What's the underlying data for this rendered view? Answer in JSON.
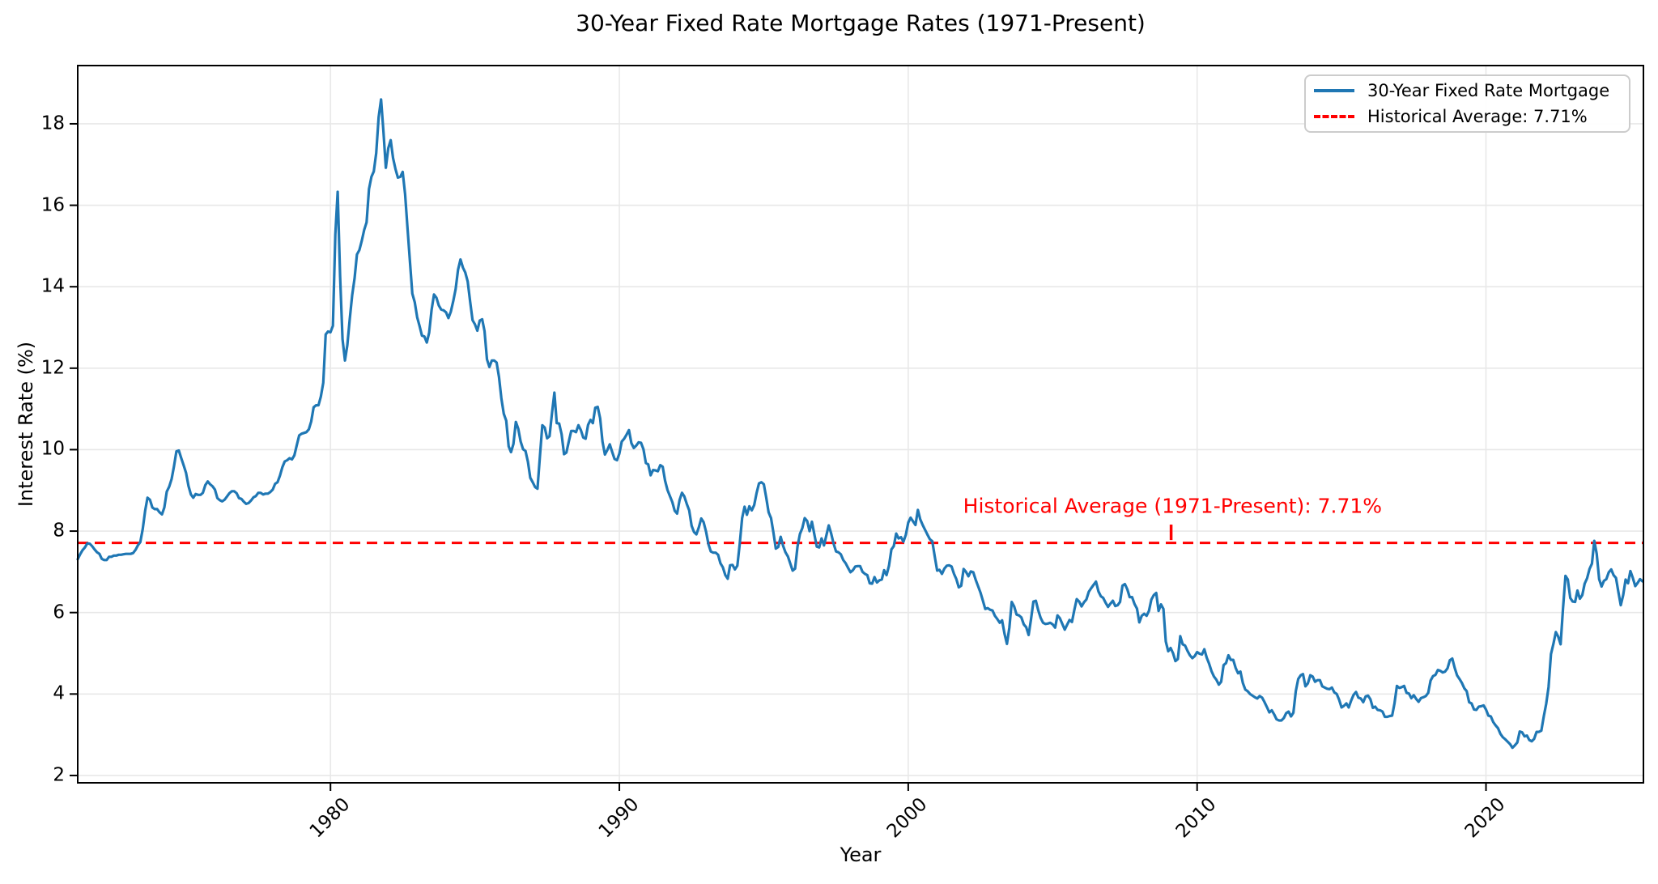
{
  "figure": {
    "background": "#ffffff"
  },
  "chart_data": {
    "type": "line",
    "title": "30-Year Fixed Rate Mortgage Rates (1971-Present)",
    "xlabel": "Year",
    "ylabel": "Interest Rate (%)",
    "xlim": [
      1971.25,
      2025.45
    ],
    "ylim": [
      1.82,
      19.43
    ],
    "xticks": [
      1980,
      1990,
      2000,
      2010,
      2020
    ],
    "yticks": [
      2,
      4,
      6,
      8,
      10,
      12,
      14,
      16,
      18
    ],
    "grid": true,
    "legend_position": "upper right",
    "colors": {
      "line": "#1f77b4",
      "average": "#ff0000",
      "grid": "#e8e8e8",
      "spine": "#000000"
    },
    "annotation": {
      "text": "Historical Average (1971-Present): 7.71%",
      "color": "#ff0000",
      "text_x": 2009.15,
      "text_y": 8.62,
      "pointer_x": 2009.1,
      "pointer_top": 8.16,
      "pointer_bottom": 7.78
    },
    "average_line": {
      "label": "Historical Average: 7.71%",
      "value": 7.71,
      "style": "dashed"
    },
    "series": [
      {
        "name": "30-Year Fixed Rate Mortgage",
        "style": "solid",
        "frequency": "monthly",
        "start_year": 1971,
        "start_month": 4,
        "values": [
          7.31,
          7.43,
          7.53,
          7.6,
          7.7,
          7.69,
          7.63,
          7.55,
          7.48,
          7.44,
          7.32,
          7.29,
          7.29,
          7.37,
          7.37,
          7.4,
          7.4,
          7.42,
          7.42,
          7.43,
          7.44,
          7.44,
          7.44,
          7.46,
          7.54,
          7.65,
          7.73,
          8.05,
          8.5,
          8.82,
          8.77,
          8.58,
          8.54,
          8.54,
          8.46,
          8.41,
          8.58,
          8.97,
          9.09,
          9.28,
          9.59,
          9.96,
          9.98,
          9.79,
          9.62,
          9.43,
          9.11,
          8.9,
          8.82,
          8.91,
          8.89,
          8.89,
          8.94,
          9.13,
          9.22,
          9.15,
          9.1,
          9.02,
          8.81,
          8.76,
          8.73,
          8.77,
          8.85,
          8.93,
          8.98,
          8.98,
          8.93,
          8.81,
          8.79,
          8.72,
          8.67,
          8.69,
          8.75,
          8.83,
          8.86,
          8.94,
          8.94,
          8.9,
          8.92,
          8.92,
          8.96,
          9.02,
          9.16,
          9.2,
          9.36,
          9.57,
          9.71,
          9.74,
          9.79,
          9.76,
          9.86,
          10.11,
          10.35,
          10.39,
          10.41,
          10.43,
          10.5,
          10.69,
          11.04,
          11.09,
          11.09,
          11.3,
          11.64,
          12.83,
          12.9,
          12.88,
          13.04,
          15.28,
          16.33,
          14.26,
          12.71,
          12.19,
          12.56,
          13.2,
          13.79,
          14.21,
          14.79,
          14.9,
          15.13,
          15.4,
          15.58,
          16.4,
          16.7,
          16.83,
          17.28,
          18.16,
          18.6,
          17.82,
          16.92,
          17.4,
          17.6,
          17.16,
          16.89,
          16.68,
          16.7,
          16.82,
          16.27,
          15.43,
          14.61,
          13.83,
          13.62,
          13.25,
          13.04,
          12.8,
          12.78,
          12.63,
          12.87,
          13.43,
          13.81,
          13.73,
          13.54,
          13.44,
          13.42,
          13.37,
          13.23,
          13.39,
          13.65,
          13.94,
          14.42,
          14.67,
          14.47,
          14.35,
          14.13,
          13.64,
          13.18,
          13.08,
          12.92,
          13.17,
          13.2,
          12.91,
          12.22,
          12.03,
          12.19,
          12.19,
          12.14,
          11.78,
          11.26,
          10.88,
          10.71,
          10.08,
          9.94,
          10.14,
          10.68,
          10.51,
          10.2,
          10.01,
          9.97,
          9.7,
          9.31,
          9.2,
          9.08,
          9.04,
          9.83,
          10.6,
          10.54,
          10.28,
          10.33,
          10.89,
          11.4,
          10.65,
          10.64,
          10.38,
          9.89,
          9.93,
          10.2,
          10.46,
          10.46,
          10.43,
          10.6,
          10.48,
          10.3,
          10.27,
          10.61,
          10.73,
          10.65,
          11.03,
          11.05,
          10.77,
          10.2,
          9.88,
          9.99,
          10.13,
          9.95,
          9.77,
          9.74,
          9.9,
          10.2,
          10.27,
          10.37,
          10.48,
          10.16,
          10.04,
          10.1,
          10.18,
          10.17,
          10.01,
          9.67,
          9.64,
          9.37,
          9.5,
          9.49,
          9.47,
          9.62,
          9.58,
          9.24,
          9.01,
          8.86,
          8.71,
          8.5,
          8.43,
          8.76,
          8.94,
          8.85,
          8.67,
          8.51,
          8.13,
          7.98,
          7.92,
          8.09,
          8.31,
          8.22,
          7.99,
          7.68,
          7.5,
          7.47,
          7.47,
          7.42,
          7.21,
          7.11,
          6.92,
          6.83,
          7.16,
          7.17,
          7.06,
          7.15,
          7.68,
          8.32,
          8.6,
          8.4,
          8.61,
          8.51,
          8.64,
          8.93,
          9.17,
          9.2,
          9.15,
          8.83,
          8.46,
          8.32,
          7.96,
          7.57,
          7.61,
          7.86,
          7.64,
          7.48,
          7.38,
          7.2,
          7.03,
          7.08,
          7.62,
          7.93,
          8.07,
          8.32,
          8.25,
          8.0,
          8.23,
          7.92,
          7.62,
          7.6,
          7.82,
          7.65,
          7.9,
          8.14,
          7.94,
          7.69,
          7.5,
          7.48,
          7.43,
          7.29,
          7.21,
          7.1,
          6.99,
          7.04,
          7.13,
          7.14,
          7.14,
          7.0,
          6.95,
          6.92,
          6.72,
          6.71,
          6.87,
          6.74,
          6.79,
          6.81,
          7.04,
          6.92,
          7.15,
          7.55,
          7.63,
          7.94,
          7.82,
          7.85,
          7.74,
          7.91,
          8.21,
          8.33,
          8.24,
          8.15,
          8.52,
          8.29,
          8.15,
          8.03,
          7.91,
          7.8,
          7.75,
          7.38,
          7.03,
          7.05,
          6.95,
          7.08,
          7.15,
          7.16,
          7.13,
          6.95,
          6.82,
          6.62,
          6.66,
          7.07,
          7.0,
          6.89,
          7.01,
          6.99,
          6.81,
          6.65,
          6.49,
          6.29,
          6.09,
          6.11,
          6.07,
          6.05,
          5.92,
          5.84,
          5.75,
          5.81,
          5.48,
          5.23,
          5.63,
          6.26,
          6.15,
          5.95,
          5.93,
          5.88,
          5.71,
          5.64,
          5.45,
          5.83,
          6.27,
          6.29,
          6.06,
          5.87,
          5.75,
          5.72,
          5.73,
          5.75,
          5.71,
          5.63,
          5.93,
          5.86,
          5.72,
          5.58,
          5.7,
          5.82,
          5.77,
          6.07,
          6.33,
          6.27,
          6.15,
          6.25,
          6.32,
          6.51,
          6.6,
          6.68,
          6.76,
          6.52,
          6.4,
          6.36,
          6.24,
          6.14,
          6.22,
          6.29,
          6.16,
          6.18,
          6.26,
          6.66,
          6.7,
          6.57,
          6.38,
          6.38,
          6.21,
          6.1,
          5.76,
          5.92,
          5.97,
          5.92,
          6.04,
          6.32,
          6.43,
          6.48,
          6.04,
          6.2,
          6.09,
          5.29,
          5.05,
          5.13,
          5.0,
          4.81,
          4.86,
          5.42,
          5.22,
          5.19,
          5.06,
          4.95,
          4.88,
          4.93,
          5.03,
          4.99,
          4.97,
          5.1,
          4.89,
          4.74,
          4.56,
          4.43,
          4.35,
          4.23,
          4.3,
          4.71,
          4.76,
          4.95,
          4.84,
          4.84,
          4.64,
          4.51,
          4.55,
          4.27,
          4.11,
          4.07,
          4.0,
          3.96,
          3.92,
          3.89,
          3.95,
          3.91,
          3.8,
          3.68,
          3.55,
          3.6,
          3.5,
          3.38,
          3.35,
          3.35,
          3.41,
          3.53,
          3.57,
          3.45,
          3.54,
          4.07,
          4.37,
          4.46,
          4.49,
          4.19,
          4.26,
          4.46,
          4.43,
          4.3,
          4.34,
          4.34,
          4.19,
          4.16,
          4.13,
          4.12,
          4.16,
          4.04,
          4.0,
          3.86,
          3.67,
          3.71,
          3.77,
          3.67,
          3.84,
          3.98,
          4.05,
          3.91,
          3.89,
          3.8,
          3.94,
          3.96,
          3.87,
          3.66,
          3.69,
          3.61,
          3.6,
          3.57,
          3.44,
          3.44,
          3.46,
          3.47,
          3.77,
          4.2,
          4.15,
          4.17,
          4.2,
          4.03,
          4.01,
          3.9,
          3.97,
          3.88,
          3.81,
          3.9,
          3.92,
          3.95,
          4.03,
          4.33,
          4.44,
          4.47,
          4.59,
          4.57,
          4.53,
          4.55,
          4.63,
          4.83,
          4.87,
          4.64,
          4.46,
          4.37,
          4.27,
          4.14,
          4.07,
          3.8,
          3.77,
          3.62,
          3.61,
          3.69,
          3.7,
          3.72,
          3.62,
          3.47,
          3.45,
          3.31,
          3.23,
          3.16,
          3.02,
          2.94,
          2.89,
          2.83,
          2.77,
          2.68,
          2.74,
          2.81,
          3.08,
          3.06,
          2.96,
          2.98,
          2.87,
          2.84,
          2.9,
          3.07,
          3.07,
          3.1,
          3.45,
          3.76,
          4.17,
          4.98,
          5.23,
          5.52,
          5.41,
          5.22,
          6.11,
          6.9,
          6.81,
          6.36,
          6.27,
          6.26,
          6.54,
          6.34,
          6.43,
          6.71,
          6.84,
          7.07,
          7.2,
          7.76,
          7.44,
          6.82,
          6.64,
          6.78,
          6.82,
          6.99,
          7.06,
          6.92,
          6.85,
          6.5,
          6.18,
          6.43,
          6.81,
          6.72,
          7.02,
          6.85,
          6.65,
          6.73,
          6.82,
          6.77
        ]
      }
    ],
    "legend": [
      {
        "label": "30-Year Fixed Rate Mortgage",
        "style": "solid",
        "color": "#1f77b4"
      },
      {
        "label": "Historical Average: 7.71%",
        "style": "dashed",
        "color": "#ff0000"
      }
    ]
  }
}
